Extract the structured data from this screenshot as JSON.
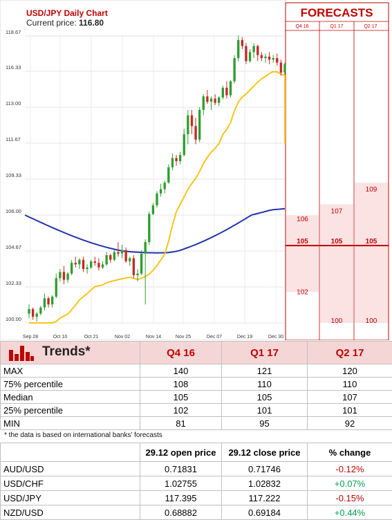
{
  "chart_header": {
    "title": "USD/JPY Daily Chart",
    "price_label": "Current price:",
    "price_value": "116.80"
  },
  "forecasts": {
    "title": "FORECASTS",
    "columns": [
      "Q4 16",
      "Q1 17",
      "Q2 17"
    ]
  },
  "chart_data": {
    "type": "candlestick",
    "title": "USD/JPY Daily Chart",
    "ylim": [
      100.0,
      118.67
    ],
    "y_ticks": [
      "118.67",
      "116.33",
      "113.00",
      "111.67",
      "109.33",
      "106.00",
      "104.67",
      "102.33",
      "100.00"
    ],
    "x_ticks": [
      "Sep 28",
      "Oct 10",
      "Oct 21",
      "Nov 02",
      "Nov 14",
      "Nov 25",
      "Dec 07",
      "Dec 19",
      "Dec 30"
    ],
    "candles": [
      [
        100.6,
        101.2,
        100.3,
        100.9
      ],
      [
        100.9,
        101.0,
        100.2,
        100.4
      ],
      [
        100.4,
        100.7,
        100.1,
        100.6
      ],
      [
        100.6,
        101.1,
        100.5,
        101.0
      ],
      [
        101.0,
        101.9,
        100.8,
        101.6
      ],
      [
        101.6,
        101.7,
        101.0,
        101.2
      ],
      [
        101.2,
        101.8,
        101.0,
        101.7
      ],
      [
        101.7,
        103.2,
        101.6,
        102.9
      ],
      [
        102.9,
        103.5,
        102.7,
        103.3
      ],
      [
        103.3,
        103.7,
        102.5,
        102.8
      ],
      [
        102.8,
        103.3,
        102.6,
        103.2
      ],
      [
        103.2,
        104.1,
        103.1,
        103.9
      ],
      [
        103.9,
        104.3,
        103.6,
        103.8
      ],
      [
        103.8,
        104.2,
        103.5,
        104.1
      ],
      [
        104.1,
        104.3,
        103.3,
        103.5
      ],
      [
        103.5,
        103.8,
        103.2,
        103.6
      ],
      [
        103.6,
        104.1,
        103.5,
        104.0
      ],
      [
        104.0,
        104.3,
        103.7,
        103.9
      ],
      [
        103.9,
        104.2,
        103.4,
        103.6
      ],
      [
        103.6,
        104.0,
        103.5,
        103.8
      ],
      [
        103.8,
        104.6,
        103.7,
        104.4
      ],
      [
        104.4,
        104.5,
        103.9,
        104.1
      ],
      [
        104.1,
        104.7,
        104.0,
        104.6
      ],
      [
        104.6,
        105.0,
        104.3,
        104.5
      ],
      [
        104.5,
        104.9,
        104.2,
        104.7
      ],
      [
        104.7,
        104.8,
        103.9,
        104.0
      ],
      [
        104.0,
        104.3,
        103.7,
        104.2
      ],
      [
        104.2,
        104.4,
        102.9,
        103.1
      ],
      [
        103.1,
        103.5,
        102.7,
        103.2
      ],
      [
        103.2,
        104.7,
        103.1,
        104.5
      ],
      [
        104.5,
        105.1,
        101.2,
        105.0
      ],
      [
        105.0,
        106.3,
        104.9,
        106.1
      ],
      [
        106.1,
        107.1,
        106.0,
        106.9
      ],
      [
        106.9,
        108.2,
        106.7,
        108.0
      ],
      [
        108.0,
        108.9,
        107.7,
        108.4
      ],
      [
        108.4,
        109.2,
        108.0,
        109.0
      ],
      [
        109.0,
        110.3,
        108.9,
        110.1
      ],
      [
        110.1,
        111.0,
        109.9,
        110.7
      ],
      [
        110.7,
        110.9,
        110.2,
        110.5
      ],
      [
        110.5,
        111.1,
        110.3,
        110.9
      ],
      [
        110.9,
        112.2,
        110.8,
        112.0
      ],
      [
        112.0,
        112.9,
        111.6,
        112.7
      ],
      [
        112.7,
        112.9,
        112.0,
        112.3
      ],
      [
        112.3,
        112.6,
        111.6,
        111.8
      ],
      [
        111.8,
        113.0,
        111.7,
        112.9
      ],
      [
        112.9,
        114.2,
        112.7,
        114.0
      ],
      [
        114.0,
        114.6,
        113.3,
        113.5
      ],
      [
        113.5,
        114.0,
        112.9,
        113.8
      ],
      [
        113.8,
        114.2,
        113.2,
        113.4
      ],
      [
        113.4,
        114.0,
        113.1,
        113.9
      ],
      [
        113.9,
        115.0,
        113.7,
        114.8
      ],
      [
        114.8,
        115.4,
        113.8,
        114.1
      ],
      [
        114.1,
        115.5,
        113.9,
        115.4
      ],
      [
        115.4,
        117.4,
        115.2,
        117.2
      ],
      [
        117.2,
        118.7,
        117.0,
        118.4
      ],
      [
        118.4,
        118.6,
        117.8,
        118.0
      ],
      [
        118.0,
        118.2,
        116.8,
        117.0
      ],
      [
        117.0,
        117.8,
        116.9,
        117.6
      ],
      [
        117.6,
        118.2,
        117.2,
        118.0
      ],
      [
        118.0,
        118.1,
        117.0,
        117.4
      ],
      [
        117.4,
        117.6,
        117.0,
        117.2
      ],
      [
        117.2,
        117.5,
        116.9,
        117.3
      ],
      [
        117.3,
        117.6,
        116.8,
        117.1
      ],
      [
        117.1,
        117.4,
        116.9,
        117.2
      ],
      [
        117.2,
        117.5,
        116.7,
        116.9
      ],
      [
        116.9,
        117.1,
        115.9,
        116.2
      ],
      [
        116.2,
        116.9,
        116.0,
        116.8
      ]
    ],
    "forecast_labels": {
      "Q4 16": [
        "106",
        "105",
        "102"
      ],
      "Q1 17": [
        "107",
        "105",
        "100"
      ],
      "Q2 17": [
        "109",
        "105",
        "100"
      ]
    }
  },
  "trends": {
    "title": "Trends*",
    "columns": [
      "Q4 16",
      "Q1 17",
      "Q2 17"
    ],
    "rows": [
      {
        "label": "MAX",
        "values": [
          "140",
          "121",
          "120"
        ]
      },
      {
        "label": "75% percentile",
        "values": [
          "108",
          "110",
          "110"
        ]
      },
      {
        "label": "Median",
        "values": [
          "105",
          "105",
          "107"
        ]
      },
      {
        "label": "25% percentile",
        "values": [
          "102",
          "101",
          "101"
        ]
      },
      {
        "label": "MIN",
        "values": [
          "81",
          "95",
          "92"
        ]
      }
    ],
    "footnote": "* the data is based on international banks' forecasts"
  },
  "prices": {
    "columns": [
      "29.12 open price",
      "29.12 close price",
      "% change"
    ],
    "rows": [
      {
        "pair": "AUD/USD",
        "open": "0.71831",
        "close": "0.71746",
        "change": "-0.12%"
      },
      {
        "pair": "USD/CHF",
        "open": "1.02755",
        "close": "1.02832",
        "change": "+0.07%"
      },
      {
        "pair": "USD/JPY",
        "open": "117.395",
        "close": "117.222",
        "change": "-0.15%"
      },
      {
        "pair": "NZD/USD",
        "open": "0.68882",
        "close": "0.69184",
        "change": "+0.44%"
      }
    ]
  },
  "colors": {
    "bull": "#2e9e2e",
    "bear": "#c62828",
    "ma_slow": "#2233aa",
    "ma_fast": "#f5c518",
    "accent": "#c00000",
    "forecast_fill": "#fbe3e3"
  }
}
